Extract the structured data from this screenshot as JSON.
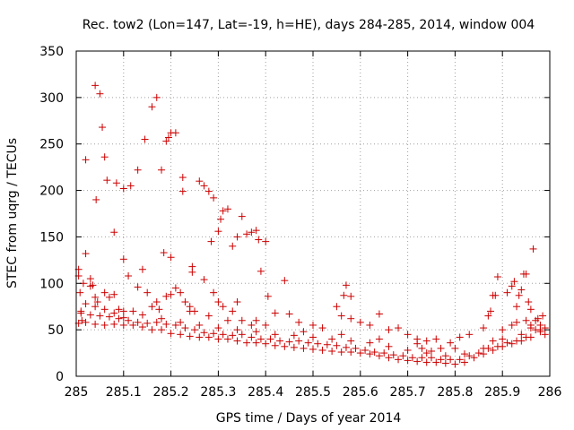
{
  "chart_data": {
    "type": "scatter",
    "title": "Rec. tow2 (Lon=147, Lat=-19, h=HE), days 284-285, 2014, window 004",
    "xlabel": "GPS time / Days of year 2014",
    "ylabel": "STEC from uqrg / TECUs",
    "xlim": [
      285,
      286
    ],
    "ylim": [
      0,
      350
    ],
    "x_ticks": [
      "285",
      "285.1",
      "285.2",
      "285.3",
      "285.4",
      "285.5",
      "285.6",
      "285.7",
      "285.8",
      "285.9",
      "286"
    ],
    "y_ticks": [
      "0",
      "50",
      "100",
      "150",
      "200",
      "250",
      "300",
      "350"
    ],
    "grid": true,
    "marker": "+",
    "color": "#cc0000",
    "series": [
      {
        "points": [
          [
            285.005,
            115
          ],
          [
            285.005,
            108
          ],
          [
            285.008,
            90
          ],
          [
            285.01,
            70
          ],
          [
            285.012,
            60
          ],
          [
            285.02,
            132
          ],
          [
            285.02,
            233
          ],
          [
            285.03,
            105
          ],
          [
            285.04,
            313
          ],
          [
            285.042,
            190
          ],
          [
            285.05,
            304
          ],
          [
            285.055,
            268
          ],
          [
            285.06,
            236
          ],
          [
            285.065,
            211
          ],
          [
            285.08,
            155
          ],
          [
            285.085,
            208
          ],
          [
            285.1,
            126
          ],
          [
            285.1,
            202
          ],
          [
            285.115,
            205
          ],
          [
            285.13,
            222
          ],
          [
            285.145,
            255
          ],
          [
            285.16,
            290
          ],
          [
            285.17,
            300
          ],
          [
            285.18,
            222
          ],
          [
            285.19,
            253
          ],
          [
            285.195,
            257
          ],
          [
            285.2,
            262
          ],
          [
            285.21,
            262
          ],
          [
            285.225,
            214
          ],
          [
            285.225,
            199
          ],
          [
            285.245,
            118
          ],
          [
            285.245,
            112
          ],
          [
            285.185,
            133
          ],
          [
            285.2,
            128
          ],
          [
            285.26,
            210
          ],
          [
            285.27,
            205
          ],
          [
            285.28,
            199
          ],
          [
            285.285,
            145
          ],
          [
            285.29,
            192
          ],
          [
            285.3,
            156
          ],
          [
            285.305,
            169
          ],
          [
            285.31,
            178
          ],
          [
            285.32,
            180
          ],
          [
            285.33,
            140
          ],
          [
            285.34,
            150
          ],
          [
            285.35,
            172
          ],
          [
            285.36,
            153
          ],
          [
            285.37,
            155
          ],
          [
            285.38,
            157
          ],
          [
            285.385,
            147
          ],
          [
            285.39,
            113
          ],
          [
            285.4,
            145
          ],
          [
            285.405,
            86
          ],
          [
            285.44,
            103
          ],
          [
            285.57,
            98
          ],
          [
            285.565,
            87
          ],
          [
            285.58,
            86
          ],
          [
            285.03,
            97
          ],
          [
            285.035,
            98
          ],
          [
            285.015,
            100
          ],
          [
            285.045,
            80
          ],
          [
            285.06,
            90
          ],
          [
            285.07,
            85
          ],
          [
            285.09,
            72
          ],
          [
            285.1,
            63
          ],
          [
            285.11,
            108
          ],
          [
            285.12,
            70
          ],
          [
            285.13,
            96
          ],
          [
            285.14,
            115
          ],
          [
            285.15,
            90
          ],
          [
            285.17,
            80
          ],
          [
            285.175,
            72
          ],
          [
            285.19,
            86
          ],
          [
            285.2,
            88
          ],
          [
            285.21,
            95
          ],
          [
            285.22,
            90
          ],
          [
            285.23,
            80
          ],
          [
            285.24,
            75
          ],
          [
            285.25,
            70
          ],
          [
            285.27,
            104
          ],
          [
            285.28,
            65
          ],
          [
            285.29,
            90
          ],
          [
            285.3,
            80
          ],
          [
            285.31,
            75
          ],
          [
            285.33,
            70
          ],
          [
            285.34,
            80
          ],
          [
            285.35,
            60
          ],
          [
            285.37,
            55
          ],
          [
            285.38,
            60
          ],
          [
            285.42,
            68
          ],
          [
            285.45,
            67
          ],
          [
            285.47,
            58
          ],
          [
            285.5,
            55
          ],
          [
            285.52,
            52
          ],
          [
            285.55,
            75
          ],
          [
            285.56,
            65
          ],
          [
            285.58,
            62
          ],
          [
            285.6,
            58
          ],
          [
            285.62,
            55
          ],
          [
            285.64,
            67
          ],
          [
            285.66,
            50
          ],
          [
            285.68,
            52
          ],
          [
            285.7,
            45
          ],
          [
            285.72,
            40
          ],
          [
            285.005,
            57
          ],
          [
            285.02,
            58
          ],
          [
            285.04,
            56
          ],
          [
            285.06,
            55
          ],
          [
            285.08,
            56
          ],
          [
            285.1,
            55
          ],
          [
            285.12,
            55
          ],
          [
            285.14,
            53
          ],
          [
            285.16,
            50
          ],
          [
            285.18,
            50
          ],
          [
            285.2,
            46
          ],
          [
            285.22,
            45
          ],
          [
            285.24,
            43
          ],
          [
            285.26,
            42
          ],
          [
            285.28,
            42
          ],
          [
            285.3,
            40
          ],
          [
            285.32,
            40
          ],
          [
            285.34,
            38
          ],
          [
            285.36,
            36
          ],
          [
            285.38,
            36
          ],
          [
            285.4,
            35
          ],
          [
            285.42,
            33
          ],
          [
            285.44,
            32
          ],
          [
            285.46,
            31
          ],
          [
            285.48,
            30
          ],
          [
            285.5,
            29
          ],
          [
            285.52,
            28
          ],
          [
            285.54,
            27
          ],
          [
            285.56,
            26
          ],
          [
            285.58,
            26
          ],
          [
            285.6,
            25
          ],
          [
            285.62,
            24
          ],
          [
            285.64,
            22
          ],
          [
            285.66,
            20
          ],
          [
            285.68,
            18
          ],
          [
            285.7,
            17
          ],
          [
            285.72,
            16
          ],
          [
            285.74,
            15
          ],
          [
            285.76,
            15
          ],
          [
            285.78,
            14
          ],
          [
            285.8,
            13
          ],
          [
            285.82,
            15
          ],
          [
            285.84,
            20
          ],
          [
            285.86,
            24
          ],
          [
            285.88,
            28
          ],
          [
            285.9,
            32
          ],
          [
            285.92,
            35
          ],
          [
            285.94,
            38
          ],
          [
            285.96,
            42
          ],
          [
            285.98,
            48
          ],
          [
            285.01,
            68
          ],
          [
            285.03,
            66
          ],
          [
            285.05,
            65
          ],
          [
            285.07,
            64
          ],
          [
            285.09,
            62
          ],
          [
            285.11,
            60
          ],
          [
            285.13,
            58
          ],
          [
            285.15,
            57
          ],
          [
            285.17,
            58
          ],
          [
            285.19,
            56
          ],
          [
            285.21,
            55
          ],
          [
            285.23,
            52
          ],
          [
            285.25,
            50
          ],
          [
            285.27,
            47
          ],
          [
            285.29,
            46
          ],
          [
            285.31,
            45
          ],
          [
            285.33,
            44
          ],
          [
            285.35,
            45
          ],
          [
            285.37,
            42
          ],
          [
            285.39,
            40
          ],
          [
            285.41,
            40
          ],
          [
            285.43,
            38
          ],
          [
            285.45,
            37
          ],
          [
            285.47,
            38
          ],
          [
            285.49,
            36
          ],
          [
            285.51,
            35
          ],
          [
            285.53,
            34
          ],
          [
            285.55,
            33
          ],
          [
            285.57,
            31
          ],
          [
            285.59,
            30
          ],
          [
            285.61,
            28
          ],
          [
            285.63,
            26
          ],
          [
            285.65,
            25
          ],
          [
            285.67,
            23
          ],
          [
            285.69,
            22
          ],
          [
            285.71,
            20
          ],
          [
            285.73,
            20
          ],
          [
            285.75,
            20
          ],
          [
            285.77,
            18
          ],
          [
            285.79,
            18
          ],
          [
            285.81,
            18
          ],
          [
            285.83,
            22
          ],
          [
            285.85,
            25
          ],
          [
            285.87,
            30
          ],
          [
            285.89,
            32
          ],
          [
            285.91,
            36
          ],
          [
            285.93,
            38
          ],
          [
            285.95,
            42
          ],
          [
            285.97,
            50
          ],
          [
            285.99,
            52
          ],
          [
            285.02,
            78
          ],
          [
            285.04,
            75
          ],
          [
            285.06,
            72
          ],
          [
            285.08,
            68
          ],
          [
            285.1,
            70
          ],
          [
            285.14,
            66
          ],
          [
            285.18,
            62
          ],
          [
            285.22,
            58
          ],
          [
            285.26,
            55
          ],
          [
            285.3,
            52
          ],
          [
            285.34,
            50
          ],
          [
            285.38,
            48
          ],
          [
            285.42,
            45
          ],
          [
            285.46,
            44
          ],
          [
            285.5,
            42
          ],
          [
            285.54,
            40
          ],
          [
            285.58,
            38
          ],
          [
            285.62,
            36
          ],
          [
            285.66,
            32
          ],
          [
            285.7,
            28
          ],
          [
            285.74,
            25
          ],
          [
            285.78,
            22
          ],
          [
            285.82,
            24
          ],
          [
            285.86,
            30
          ],
          [
            285.9,
            40
          ],
          [
            285.94,
            45
          ],
          [
            285.98,
            55
          ],
          [
            285.04,
            85
          ],
          [
            285.08,
            88
          ],
          [
            285.16,
            75
          ],
          [
            285.24,
            70
          ],
          [
            285.32,
            60
          ],
          [
            285.4,
            55
          ],
          [
            285.48,
            48
          ],
          [
            285.56,
            45
          ],
          [
            285.64,
            40
          ],
          [
            285.72,
            35
          ],
          [
            285.8,
            30
          ],
          [
            285.88,
            38
          ],
          [
            285.96,
            52
          ],
          [
            285.81,
            42
          ],
          [
            285.83,
            45
          ],
          [
            285.86,
            52
          ],
          [
            285.87,
            65
          ],
          [
            285.875,
            70
          ],
          [
            285.88,
            87
          ],
          [
            285.885,
            87
          ],
          [
            285.89,
            107
          ],
          [
            285.91,
            90
          ],
          [
            285.92,
            97
          ],
          [
            285.925,
            102
          ],
          [
            285.93,
            75
          ],
          [
            285.935,
            87
          ],
          [
            285.94,
            93
          ],
          [
            285.945,
            110
          ],
          [
            285.95,
            110
          ],
          [
            285.955,
            80
          ],
          [
            285.96,
            72
          ],
          [
            285.965,
            137
          ],
          [
            285.975,
            62
          ],
          [
            285.985,
            65
          ],
          [
            285.99,
            45
          ],
          [
            285.97,
            60
          ],
          [
            285.95,
            60
          ],
          [
            285.92,
            55
          ],
          [
            285.9,
            50
          ],
          [
            285.93,
            58
          ],
          [
            285.96,
            55
          ],
          [
            285.98,
            50
          ],
          [
            285.79,
            36
          ],
          [
            285.76,
            40
          ],
          [
            285.74,
            38
          ],
          [
            285.73,
            30
          ],
          [
            285.75,
            27
          ],
          [
            285.77,
            30
          ]
        ]
      }
    ]
  }
}
